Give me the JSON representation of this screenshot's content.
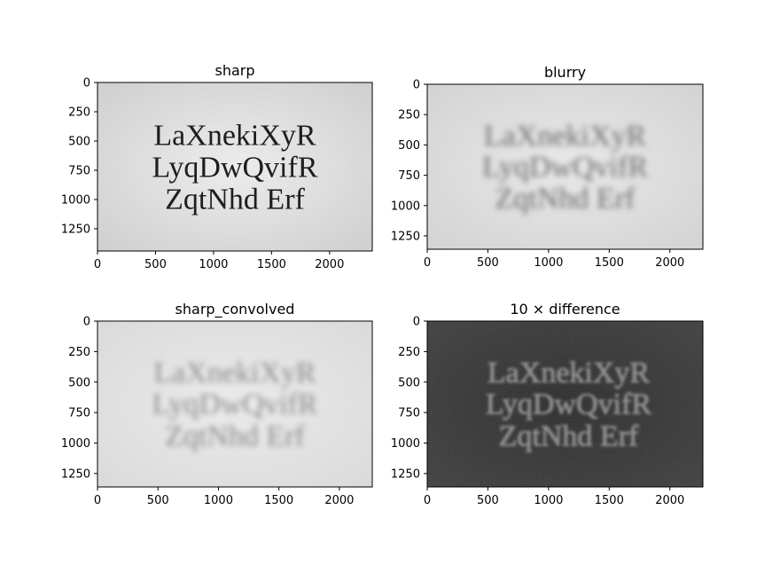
{
  "chart_data": [
    {
      "type": "image",
      "title": "sharp",
      "xlim": [
        0,
        2368
      ],
      "ylim": [
        1440,
        0
      ],
      "xticks": [
        0,
        500,
        1000,
        1500,
        2000
      ],
      "yticks": [
        0,
        250,
        500,
        750,
        1000,
        1250
      ],
      "image_text": [
        "LaXnekiXyR",
        "LyqDwQvifR",
        "ZqtNhd Erf"
      ],
      "background_color": "#d9d9d9",
      "text_color": "#1e1e1e"
    },
    {
      "type": "image",
      "title": "blurry",
      "xlim": [
        0,
        2272
      ],
      "ylim": [
        1360,
        0
      ],
      "xticks": [
        0,
        500,
        1000,
        1500,
        2000
      ],
      "yticks": [
        0,
        250,
        500,
        750,
        1000,
        1250
      ],
      "image_text": [
        "LaXnekiXyR",
        "LyqDwQvifR",
        "ZqtNhd Erf"
      ],
      "background_color": "#dcdcdc",
      "text_color": "#6a6a6a"
    },
    {
      "type": "image",
      "title": "sharp_convolved",
      "xlim": [
        0,
        2272
      ],
      "ylim": [
        1360,
        0
      ],
      "xticks": [
        0,
        500,
        1000,
        1500,
        2000
      ],
      "yticks": [
        0,
        250,
        500,
        750,
        1000,
        1250
      ],
      "image_text": [
        "LaXnekiXyR",
        "LyqDwQvifR",
        "ZqtNhd Erf"
      ],
      "background_color": "#e3e3e3",
      "text_color": "#8a8a8a"
    },
    {
      "type": "image",
      "title": "10 × difference",
      "xlim": [
        0,
        2272
      ],
      "ylim": [
        1360,
        0
      ],
      "xticks": [
        0,
        500,
        1000,
        1500,
        2000
      ],
      "yticks": [
        0,
        250,
        500,
        750,
        1000,
        1250
      ],
      "image_text": [
        "LaXnekiXyR",
        "LyqDwQvifR",
        "ZqtNhd Erf"
      ],
      "background_color": "#2a2a2a",
      "text_color": "#8e8e8e"
    }
  ]
}
